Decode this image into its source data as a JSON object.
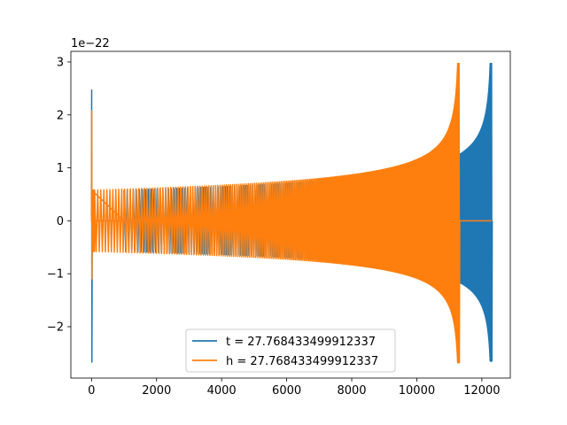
{
  "chart_data": {
    "type": "line",
    "title": "",
    "xlabel": "",
    "ylabel": "",
    "y_offset_label": "1e−22",
    "xlim": [
      -635,
      12875
    ],
    "ylim": [
      -2.97,
      3.2
    ],
    "grid": false,
    "legend_position": "lower center",
    "x_ticks": [
      {
        "value": 0,
        "label": "0"
      },
      {
        "value": 2000,
        "label": "2000"
      },
      {
        "value": 4000,
        "label": "4000"
      },
      {
        "value": 6000,
        "label": "6000"
      },
      {
        "value": 8000,
        "label": "8000"
      },
      {
        "value": 10000,
        "label": "10000"
      },
      {
        "value": 12000,
        "label": "12000"
      }
    ],
    "y_ticks": [
      {
        "value": -2,
        "label": "−2"
      },
      {
        "value": -1,
        "label": "−1"
      },
      {
        "value": 0,
        "label": "0"
      },
      {
        "value": 1,
        "label": "1"
      },
      {
        "value": 2,
        "label": "2"
      },
      {
        "value": 3,
        "label": "3"
      }
    ],
    "series": [
      {
        "name": "t = 27.768433499912337",
        "color": "#1f77b4",
        "start_x": 0,
        "start_spike": 2.47,
        "start_spike_min": -2.67,
        "oscillation_start": 1000,
        "oscillation_end": 12300,
        "base_amplitude": 0.58,
        "peak_amplitude": 2.97,
        "trough_amplitude": -2.65
      },
      {
        "name": "h = 27.768433499912337",
        "color": "#ff7f0e",
        "start_x": 0,
        "start_spike": 2.08,
        "start_spike_min": -1.1,
        "oscillation_start": 0,
        "oscillation_end": 11300,
        "flat_from": 100,
        "flat_to": 1000,
        "flat_end_to": 12300,
        "base_amplitude": 0.58,
        "peak_amplitude": 2.97,
        "trough_amplitude": -2.68
      }
    ]
  }
}
